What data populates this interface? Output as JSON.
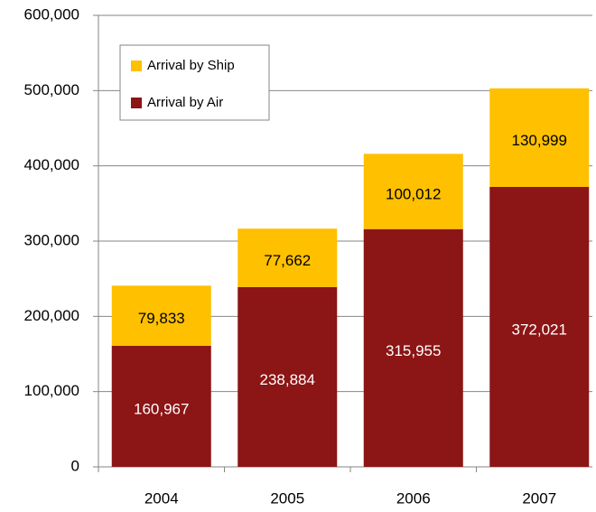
{
  "chart_data": {
    "type": "stacked_bar",
    "categories": [
      "2004",
      "2005",
      "2006",
      "2007"
    ],
    "series": [
      {
        "name": "Arrival by Air",
        "color": "#8c1515",
        "values": [
          160967,
          238884,
          315955,
          372021
        ],
        "value_labels": [
          "160,967",
          "238,884",
          "315,955",
          "372,021"
        ]
      },
      {
        "name": "Arrival by Ship",
        "color": "#ffc000",
        "values": [
          79833,
          77662,
          100012,
          130999
        ],
        "value_labels": [
          "79,833",
          "77,662",
          "100,012",
          "130,999"
        ]
      }
    ],
    "ylim": [
      0,
      600000
    ],
    "yticks": [
      0,
      {
        "value": 100000,
        "label": "100,000"
      },
      {
        "value": 200000,
        "label": "200,000"
      },
      {
        "value": 300000,
        "label": "300,000"
      },
      {
        "value": 400000,
        "label": "400,000"
      },
      {
        "value": 500000,
        "label": "500,000"
      },
      {
        "value": 600000,
        "label": "600,000"
      }
    ],
    "grid": true,
    "legend": "upper left"
  }
}
